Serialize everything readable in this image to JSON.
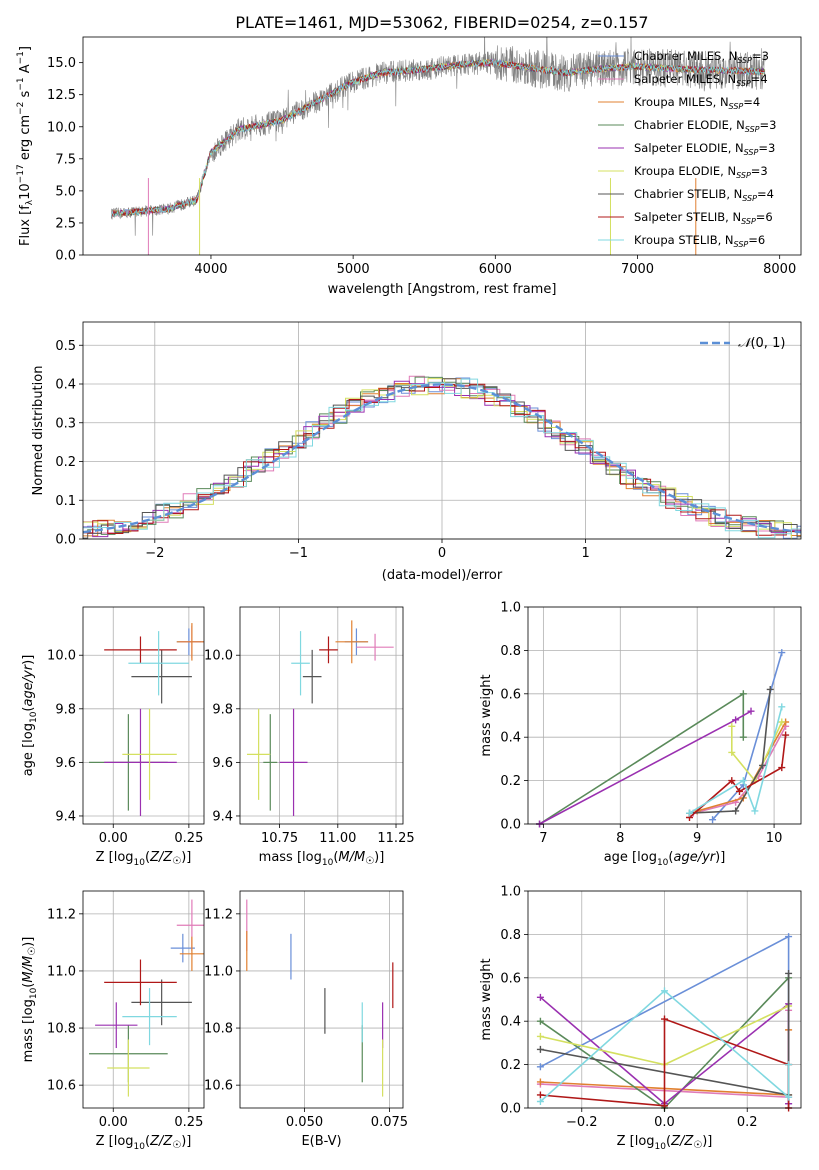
{
  "title": "PLATE=1461, MJD=53062, FIBERID=0254, z=0.157",
  "colors": {
    "Chabrier MILES": "#6a8fd8",
    "Salpeter MILES": "#e07bb8",
    "Kroupa MILES": "#e08030",
    "Chabrier ELODIE": "#5a8a5a",
    "Salpeter ELODIE": "#9a30b0",
    "Kroupa ELODIE": "#d4e060",
    "Chabrier STELIB": "#555555",
    "Salpeter STELIB": "#b01818",
    "Kroupa STELIB": "#80d8e0"
  },
  "chart_data": [
    {
      "id": "spectrum",
      "type": "line",
      "title": "PLATE=1461, MJD=53062, FIBERID=0254, z=0.157",
      "xlabel": "wavelength [Angstrom, rest frame]",
      "ylabel": "Flux [f_λ 10^-17 erg cm^-2 s^-1 A^-1]",
      "xlim": [
        3100,
        8150
      ],
      "ylim": [
        0,
        17
      ],
      "xticks": [
        4000,
        5000,
        6000,
        7000,
        8000
      ],
      "yticks": [
        0.0,
        2.5,
        5.0,
        7.5,
        10.0,
        12.5,
        15.0
      ],
      "grid": false,
      "legend": "right",
      "legend_entries": [
        "Chabrier MILES, N_SSP=3",
        "Salpeter MILES, N_SSP=4",
        "Kroupa MILES, N_SSP=4",
        "Chabrier ELODIE, N_SSP=3",
        "Salpeter ELODIE, N_SSP=3",
        "Kroupa ELODIE, N_SSP=3",
        "Chabrier STELIB, N_SSP=4",
        "Salpeter STELIB, N_SSP=6",
        "Kroupa STELIB, N_SSP=6"
      ],
      "data_envelope": {
        "x": [
          3300,
          3500,
          3700,
          3900,
          4000,
          4200,
          4500,
          4800,
          5000,
          5200,
          5500,
          5800,
          6000,
          6300,
          6500,
          6800,
          7000,
          7300,
          7600,
          7900
        ],
        "y": [
          3.2,
          3.4,
          3.6,
          4.3,
          8.0,
          9.8,
          10.5,
          12.3,
          13.5,
          14.2,
          14.5,
          14.9,
          15.0,
          14.5,
          14.2,
          14.6,
          14.7,
          14.5,
          14.4,
          14.3
        ]
      }
    },
    {
      "id": "residuals",
      "type": "histogram",
      "xlabel": "(data-model)/error",
      "ylabel": "Normed distribution",
      "xlim": [
        -2.5,
        2.5
      ],
      "ylim": [
        0,
        0.56
      ],
      "xticks": [
        -2,
        -1,
        0,
        1,
        2
      ],
      "yticks": [
        0.0,
        0.1,
        0.2,
        0.3,
        0.4,
        0.5
      ],
      "grid": true,
      "legend": "top-right",
      "legend_entries": [
        "N(0, 1)"
      ],
      "gaussian": {
        "mean": 0,
        "sigma": 1
      }
    },
    {
      "id": "age-vs-Z",
      "type": "scatter",
      "xlabel": "Z [log10(Z/Z☉)]",
      "ylabel": "age [log10(age/yr)]",
      "xlim": [
        -0.1,
        0.3
      ],
      "ylim": [
        9.37,
        10.18
      ],
      "xticks": [
        0.0,
        0.25
      ],
      "yticks": [
        9.4,
        9.6,
        9.8,
        10.0
      ],
      "grid": true,
      "points": [
        {
          "series": "Chabrier MILES",
          "x": 0.25,
          "y": 10.05,
          "xerr": 0.04,
          "yerr": 0.05
        },
        {
          "series": "Salpeter MILES",
          "x": 0.26,
          "y": 10.05,
          "xerr": 0.04,
          "yerr": 0.06
        },
        {
          "series": "Kroupa MILES",
          "x": 0.26,
          "y": 10.05,
          "xerr": 0.05,
          "yerr": 0.07
        },
        {
          "series": "Chabrier ELODIE",
          "x": 0.05,
          "y": 9.6,
          "xerr": 0.13,
          "yerr": 0.18
        },
        {
          "series": "Salpeter ELODIE",
          "x": 0.09,
          "y": 9.6,
          "xerr": 0.12,
          "yerr": 0.2
        },
        {
          "series": "Kroupa ELODIE",
          "x": 0.12,
          "y": 9.63,
          "xerr": 0.09,
          "yerr": 0.17
        },
        {
          "series": "Chabrier STELIB",
          "x": 0.16,
          "y": 9.92,
          "xerr": 0.1,
          "yerr": 0.1
        },
        {
          "series": "Salpeter STELIB",
          "x": 0.09,
          "y": 10.02,
          "xerr": 0.12,
          "yerr": 0.05
        },
        {
          "series": "Kroupa STELIB",
          "x": 0.15,
          "y": 9.97,
          "xerr": 0.1,
          "yerr": 0.12
        }
      ]
    },
    {
      "id": "age-vs-mass",
      "type": "scatter",
      "xlabel": "mass [log10(M/M☉)]",
      "ylabel": "",
      "xlim": [
        10.58,
        11.28
      ],
      "ylim": [
        9.37,
        10.18
      ],
      "xticks": [
        10.75,
        11.0,
        11.25
      ],
      "yticks": [
        9.4,
        9.6,
        9.8,
        10.0
      ],
      "grid": true,
      "points": [
        {
          "series": "Chabrier MILES",
          "x": 11.08,
          "y": 10.05,
          "xerr": 0.05,
          "yerr": 0.05
        },
        {
          "series": "Salpeter MILES",
          "x": 11.16,
          "y": 10.03,
          "xerr": 0.08,
          "yerr": 0.05
        },
        {
          "series": "Kroupa MILES",
          "x": 11.06,
          "y": 10.05,
          "xerr": 0.07,
          "yerr": 0.08
        },
        {
          "series": "Chabrier ELODIE",
          "x": 10.71,
          "y": 9.6,
          "xerr": 0.03,
          "yerr": 0.18
        },
        {
          "series": "Salpeter ELODIE",
          "x": 10.81,
          "y": 9.6,
          "xerr": 0.06,
          "yerr": 0.2
        },
        {
          "series": "Kroupa ELODIE",
          "x": 10.66,
          "y": 9.63,
          "xerr": 0.05,
          "yerr": 0.17
        },
        {
          "series": "Chabrier STELIB",
          "x": 10.89,
          "y": 9.92,
          "xerr": 0.04,
          "yerr": 0.1
        },
        {
          "series": "Salpeter STELIB",
          "x": 10.96,
          "y": 10.02,
          "xerr": 0.04,
          "yerr": 0.05
        },
        {
          "series": "Kroupa STELIB",
          "x": 10.84,
          "y": 9.97,
          "xerr": 0.04,
          "yerr": 0.12
        }
      ]
    },
    {
      "id": "mass-weight-vs-age",
      "type": "line",
      "xlabel": "age [log10(age/yr)]",
      "ylabel": "mass weight",
      "xlim": [
        6.8,
        10.35
      ],
      "ylim": [
        0,
        1
      ],
      "xticks": [
        7,
        8,
        9,
        10
      ],
      "yticks": [
        0.0,
        0.2,
        0.4,
        0.6,
        0.8,
        1.0
      ],
      "grid": true,
      "series": [
        {
          "name": "Chabrier MILES",
          "x": [
            9.2,
            9.6,
            10.1
          ],
          "y": [
            0.02,
            0.18,
            0.79
          ]
        },
        {
          "name": "Salpeter MILES",
          "x": [
            8.95,
            9.5,
            9.8,
            10.15
          ],
          "y": [
            0.05,
            0.1,
            0.22,
            0.45
          ]
        },
        {
          "name": "Kroupa MILES",
          "x": [
            9.0,
            9.6,
            10.15
          ],
          "y": [
            0.06,
            0.12,
            0.47
          ]
        },
        {
          "name": "Chabrier ELODIE",
          "x": [
            6.95,
            9.6,
            9.6
          ],
          "y": [
            0.0,
            0.6,
            0.4
          ]
        },
        {
          "name": "Salpeter ELODIE",
          "x": [
            6.95,
            9.5,
            9.7
          ],
          "y": [
            0.0,
            0.48,
            0.52
          ]
        },
        {
          "name": "Kroupa ELODIE",
          "x": [
            9.45,
            9.45,
            9.75,
            10.1
          ],
          "y": [
            0.45,
            0.33,
            0.2,
            0.47
          ]
        },
        {
          "name": "Chabrier STELIB",
          "x": [
            8.9,
            9.5,
            9.85,
            9.95
          ],
          "y": [
            0.05,
            0.06,
            0.27,
            0.62
          ]
        },
        {
          "name": "Salpeter STELIB",
          "x": [
            8.9,
            9.45,
            9.55,
            10.1,
            10.15
          ],
          "y": [
            0.03,
            0.2,
            0.15,
            0.26,
            0.41
          ]
        },
        {
          "name": "Kroupa STELIB",
          "x": [
            8.9,
            9.6,
            9.75,
            10.1
          ],
          "y": [
            0.05,
            0.2,
            0.06,
            0.54
          ]
        }
      ]
    },
    {
      "id": "mass-vs-Z",
      "type": "scatter",
      "xlabel": "Z [log10(Z/Z☉)]",
      "ylabel": "mass [log10(M/M☉)]",
      "xlim": [
        -0.1,
        0.3
      ],
      "ylim": [
        10.52,
        11.28
      ],
      "xticks": [
        0.0,
        0.25
      ],
      "yticks": [
        10.6,
        10.8,
        11.0,
        11.2
      ],
      "grid": true,
      "points": [
        {
          "series": "Chabrier MILES",
          "x": 0.23,
          "y": 11.08,
          "xerr": 0.04,
          "yerr": 0.05
        },
        {
          "series": "Salpeter MILES",
          "x": 0.26,
          "y": 11.16,
          "xerr": 0.05,
          "yerr": 0.09
        },
        {
          "series": "Kroupa MILES",
          "x": 0.26,
          "y": 11.06,
          "xerr": 0.04,
          "yerr": 0.06
        },
        {
          "series": "Chabrier ELODIE",
          "x": 0.05,
          "y": 10.71,
          "xerr": 0.13,
          "yerr": 0.1
        },
        {
          "series": "Salpeter ELODIE",
          "x": 0.01,
          "y": 10.81,
          "xerr": 0.07,
          "yerr": 0.08
        },
        {
          "series": "Kroupa ELODIE",
          "x": 0.05,
          "y": 10.66,
          "xerr": 0.07,
          "yerr": 0.1
        },
        {
          "series": "Chabrier STELIB",
          "x": 0.16,
          "y": 10.89,
          "xerr": 0.1,
          "yerr": 0.08
        },
        {
          "series": "Salpeter STELIB",
          "x": 0.09,
          "y": 10.96,
          "xerr": 0.12,
          "yerr": 0.08
        },
        {
          "series": "Kroupa STELIB",
          "x": 0.12,
          "y": 10.84,
          "xerr": 0.09,
          "yerr": 0.1
        }
      ]
    },
    {
      "id": "mass-vs-EBV",
      "type": "scatter",
      "xlabel": "E(B-V)",
      "ylabel": "",
      "xlim": [
        0.031,
        0.079
      ],
      "ylim": [
        10.52,
        11.28
      ],
      "xticks": [
        0.05,
        0.075
      ],
      "yticks": [
        10.6,
        10.8,
        11.0,
        11.2
      ],
      "grid": true,
      "points": [
        {
          "series": "Chabrier MILES",
          "x": 0.046,
          "y": 11.05,
          "xerr": 0,
          "yerr": 0.08
        },
        {
          "series": "Salpeter MILES",
          "x": 0.033,
          "y": 11.16,
          "xerr": 0,
          "yerr": 0.09
        },
        {
          "series": "Kroupa MILES",
          "x": 0.033,
          "y": 11.07,
          "xerr": 0,
          "yerr": 0.07
        },
        {
          "series": "Chabrier ELODIE",
          "x": 0.067,
          "y": 10.71,
          "xerr": 0,
          "yerr": 0.1
        },
        {
          "series": "Salpeter ELODIE",
          "x": 0.073,
          "y": 10.81,
          "xerr": 0,
          "yerr": 0.08
        },
        {
          "series": "Kroupa ELODIE",
          "x": 0.073,
          "y": 10.66,
          "xerr": 0,
          "yerr": 0.1
        },
        {
          "series": "Chabrier STELIB",
          "x": 0.056,
          "y": 10.86,
          "xerr": 0,
          "yerr": 0.08
        },
        {
          "series": "Salpeter STELIB",
          "x": 0.076,
          "y": 10.95,
          "xerr": 0,
          "yerr": 0.08
        },
        {
          "series": "Kroupa STELIB",
          "x": 0.067,
          "y": 10.82,
          "xerr": 0,
          "yerr": 0.07
        }
      ]
    },
    {
      "id": "mass-weight-vs-Z",
      "type": "line",
      "xlabel": "Z [log10(Z/Z☉)]",
      "ylabel": "mass weight",
      "xlim": [
        -0.33,
        0.33
      ],
      "ylim": [
        0,
        1
      ],
      "xticks": [
        -0.2,
        0.0,
        0.2
      ],
      "yticks": [
        0.0,
        0.2,
        0.4,
        0.6,
        0.8,
        1.0
      ],
      "grid": true,
      "series": [
        {
          "name": "Chabrier MILES",
          "x": [
            -0.3,
            0.3,
            0.3
          ],
          "y": [
            0.19,
            0.79,
            0.02
          ]
        },
        {
          "name": "Salpeter MILES",
          "x": [
            -0.3,
            0.3,
            0.3
          ],
          "y": [
            0.11,
            0.05,
            0.45
          ]
        },
        {
          "name": "Kroupa MILES",
          "x": [
            -0.3,
            0.3,
            0.3
          ],
          "y": [
            0.12,
            0.06,
            0.36
          ]
        },
        {
          "name": "Chabrier ELODIE",
          "x": [
            -0.3,
            0.0,
            0.3
          ],
          "y": [
            0.4,
            0.0,
            0.6
          ]
        },
        {
          "name": "Salpeter ELODIE",
          "x": [
            -0.3,
            0.0,
            0.3,
            0.3
          ],
          "y": [
            0.51,
            0.02,
            0.48,
            0.02
          ]
        },
        {
          "name": "Kroupa ELODIE",
          "x": [
            -0.3,
            0.0,
            0.3
          ],
          "y": [
            0.33,
            0.2,
            0.47
          ]
        },
        {
          "name": "Chabrier STELIB",
          "x": [
            -0.3,
            0.3,
            0.3
          ],
          "y": [
            0.27,
            0.06,
            0.62
          ]
        },
        {
          "name": "Salpeter STELIB",
          "x": [
            -0.3,
            0.0,
            0.0,
            0.3,
            0.3
          ],
          "y": [
            0.06,
            0.01,
            0.41,
            0.2,
            0.0
          ]
        },
        {
          "name": "Kroupa STELIB",
          "x": [
            -0.3,
            0.0,
            0.3,
            0.3
          ],
          "y": [
            0.03,
            0.54,
            0.05,
            0.2
          ]
        }
      ]
    }
  ]
}
